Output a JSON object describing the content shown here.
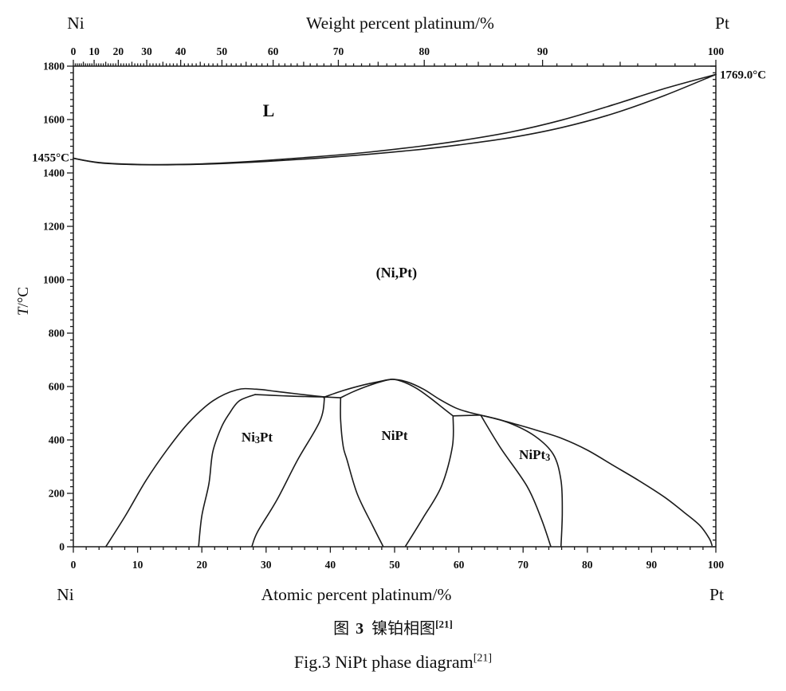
{
  "figure": {
    "caption_cn": {
      "fig_label": "图",
      "fig_number": "3",
      "title": "镍铂相图",
      "reference": "[21]"
    },
    "caption_en": {
      "title": "Fig.3 NiPt phase diagram",
      "reference": "[21]"
    }
  },
  "chart_data": {
    "type": "line",
    "title": "NiPt phase diagram",
    "line_color": "#1b1b1b",
    "top_axis": {
      "title": "Weight percent platinum/%",
      "left_element": "Ni",
      "right_element": "Pt",
      "major_tick_labels": [
        0,
        10,
        20,
        30,
        40,
        50,
        60,
        70,
        80,
        90,
        100
      ],
      "minor_step_wt": 1,
      "scale": "weight percent (nonlinear vs atomic axis)"
    },
    "bottom_axis": {
      "title": "Atomic percent platinum/%",
      "left_element": "Ni",
      "right_element": "Pt",
      "major_tick_labels": [
        0,
        10,
        20,
        30,
        40,
        50,
        60,
        70,
        80,
        90,
        100
      ],
      "minor_step": 2,
      "range": [
        0,
        100
      ]
    },
    "y_axis": {
      "title": "T/°C",
      "range": [
        0,
        1800
      ],
      "major_step": 200,
      "minor_step": 25,
      "major_tick_labels": [
        0,
        200,
        400,
        600,
        800,
        1000,
        1200,
        1400,
        1600,
        1800
      ]
    },
    "annotations": [
      {
        "text": "1455°C",
        "T": 1455,
        "at": 0,
        "side": "left"
      },
      {
        "text": "1769.0°C",
        "T": 1769,
        "at": 100,
        "side": "right"
      }
    ],
    "phase_labels": [
      {
        "parts": [
          {
            "t": "L"
          }
        ],
        "at": 30.4,
        "T": 1636,
        "size": 22
      },
      {
        "parts": [
          {
            "t": "(Ni,Pt)"
          }
        ],
        "at": 50.3,
        "T": 1027,
        "size": 18
      },
      {
        "parts": [
          {
            "t": "Ni"
          },
          {
            "t": "3",
            "sub": true
          },
          {
            "t": "Pt"
          }
        ],
        "at": 28.6,
        "T": 412,
        "size": 17
      },
      {
        "parts": [
          {
            "t": "NiPt"
          }
        ],
        "at": 50.0,
        "T": 418,
        "size": 17
      },
      {
        "parts": [
          {
            "t": "NiPt"
          },
          {
            "t": "3",
            "sub": true
          }
        ],
        "at": 71.8,
        "T": 346,
        "size": 17
      }
    ],
    "series": [
      {
        "name": "liquidus",
        "points": [
          [
            0,
            1455
          ],
          [
            4,
            1439
          ],
          [
            10,
            1432
          ],
          [
            16,
            1432
          ],
          [
            22,
            1436
          ],
          [
            30,
            1447
          ],
          [
            38,
            1461
          ],
          [
            46,
            1478
          ],
          [
            54,
            1500
          ],
          [
            60,
            1520
          ],
          [
            68,
            1553
          ],
          [
            76,
            1598
          ],
          [
            84,
            1655
          ],
          [
            92,
            1716
          ],
          [
            100,
            1769
          ]
        ]
      },
      {
        "name": "solidus",
        "points": [
          [
            0,
            1455
          ],
          [
            4,
            1438
          ],
          [
            10,
            1431
          ],
          [
            16,
            1431
          ],
          [
            22,
            1434
          ],
          [
            30,
            1443
          ],
          [
            38,
            1455
          ],
          [
            46,
            1470
          ],
          [
            54,
            1488
          ],
          [
            60,
            1505
          ],
          [
            68,
            1532
          ],
          [
            76,
            1570
          ],
          [
            84,
            1622
          ],
          [
            92,
            1690
          ],
          [
            100,
            1769
          ]
        ]
      },
      {
        "name": "solvus-envelope",
        "points": [
          [
            5.1,
            2
          ],
          [
            8.1,
            116
          ],
          [
            11.3,
            248
          ],
          [
            14.7,
            367
          ],
          [
            18,
            466
          ],
          [
            21.7,
            546
          ],
          [
            25.5,
            588
          ],
          [
            28.5,
            590
          ],
          [
            31.5,
            582
          ],
          [
            35,
            572
          ],
          [
            37.5,
            565
          ],
          [
            39.1,
            561
          ],
          [
            39.1,
            561
          ],
          [
            42,
            585
          ],
          [
            45,
            605
          ],
          [
            47.5,
            618
          ],
          [
            49.7,
            627
          ],
          [
            52,
            617
          ],
          [
            54.5,
            590
          ],
          [
            57,
            552
          ],
          [
            59.5,
            520
          ],
          [
            61.5,
            504
          ],
          [
            63.4,
            493
          ],
          [
            63.4,
            493
          ],
          [
            66,
            478
          ],
          [
            69,
            458
          ],
          [
            72,
            437
          ],
          [
            76,
            406
          ],
          [
            80,
            362
          ],
          [
            84,
            305
          ],
          [
            88,
            248
          ],
          [
            92,
            186
          ],
          [
            95,
            130
          ],
          [
            97.5,
            80
          ],
          [
            99,
            30
          ],
          [
            99.4,
            5
          ]
        ]
      },
      {
        "name": "ni3pt-left",
        "points": [
          [
            19.5,
            2
          ],
          [
            20,
            116
          ],
          [
            21.1,
            236
          ],
          [
            21.7,
            355
          ],
          [
            23,
            445
          ],
          [
            24.2,
            496
          ],
          [
            25.8,
            546
          ],
          [
            28.3,
            570
          ]
        ]
      },
      {
        "name": "ni3pt-top",
        "points": [
          [
            28.3,
            570
          ],
          [
            31,
            567
          ],
          [
            34,
            564
          ],
          [
            36.8,
            562
          ],
          [
            39.1,
            561
          ]
        ]
      },
      {
        "name": "ni3pt-right",
        "points": [
          [
            39.1,
            561
          ],
          [
            38.4,
            472
          ],
          [
            34.9,
            325
          ],
          [
            31.7,
            176
          ],
          [
            28.7,
            57
          ],
          [
            27.8,
            2
          ]
        ]
      },
      {
        "name": "tie-line-ni3pt-nipt",
        "points": [
          [
            39.1,
            561
          ],
          [
            41.6,
            558
          ]
        ]
      },
      {
        "name": "nipt-left",
        "points": [
          [
            48.2,
            2
          ],
          [
            46.6,
            78
          ],
          [
            44.2,
            197
          ],
          [
            42.6,
            325
          ],
          [
            42,
            376
          ],
          [
            41.6,
            475
          ],
          [
            41.6,
            558
          ]
        ]
      },
      {
        "name": "nipt-top",
        "points": [
          [
            41.6,
            558
          ],
          [
            43.5,
            580
          ],
          [
            45.7,
            601
          ],
          [
            47.7,
            617
          ],
          [
            49.7,
            627
          ],
          [
            51.5,
            616
          ],
          [
            53.5,
            592
          ],
          [
            55.5,
            558
          ],
          [
            57.5,
            520
          ],
          [
            59.1,
            490
          ]
        ]
      },
      {
        "name": "tie-line-nipt-nipt3",
        "points": [
          [
            59.1,
            490
          ],
          [
            63.4,
            493
          ]
        ]
      },
      {
        "name": "nipt-right-lower",
        "points": [
          [
            59.1,
            490
          ],
          [
            59,
            376
          ],
          [
            57.3,
            227
          ],
          [
            54.4,
            107
          ],
          [
            51.7,
            2
          ]
        ]
      },
      {
        "name": "nipt3-left",
        "points": [
          [
            63.4,
            493
          ],
          [
            66.5,
            370
          ],
          [
            70.6,
            227
          ],
          [
            72.8,
            107
          ],
          [
            74.3,
            2
          ]
        ]
      },
      {
        "name": "nipt3-right",
        "points": [
          [
            63.4,
            493
          ],
          [
            67.7,
            465
          ],
          [
            71.8,
            415
          ],
          [
            74.7,
            346
          ],
          [
            75.9,
            248
          ],
          [
            76.1,
            128
          ],
          [
            75.9,
            2
          ]
        ]
      }
    ]
  }
}
